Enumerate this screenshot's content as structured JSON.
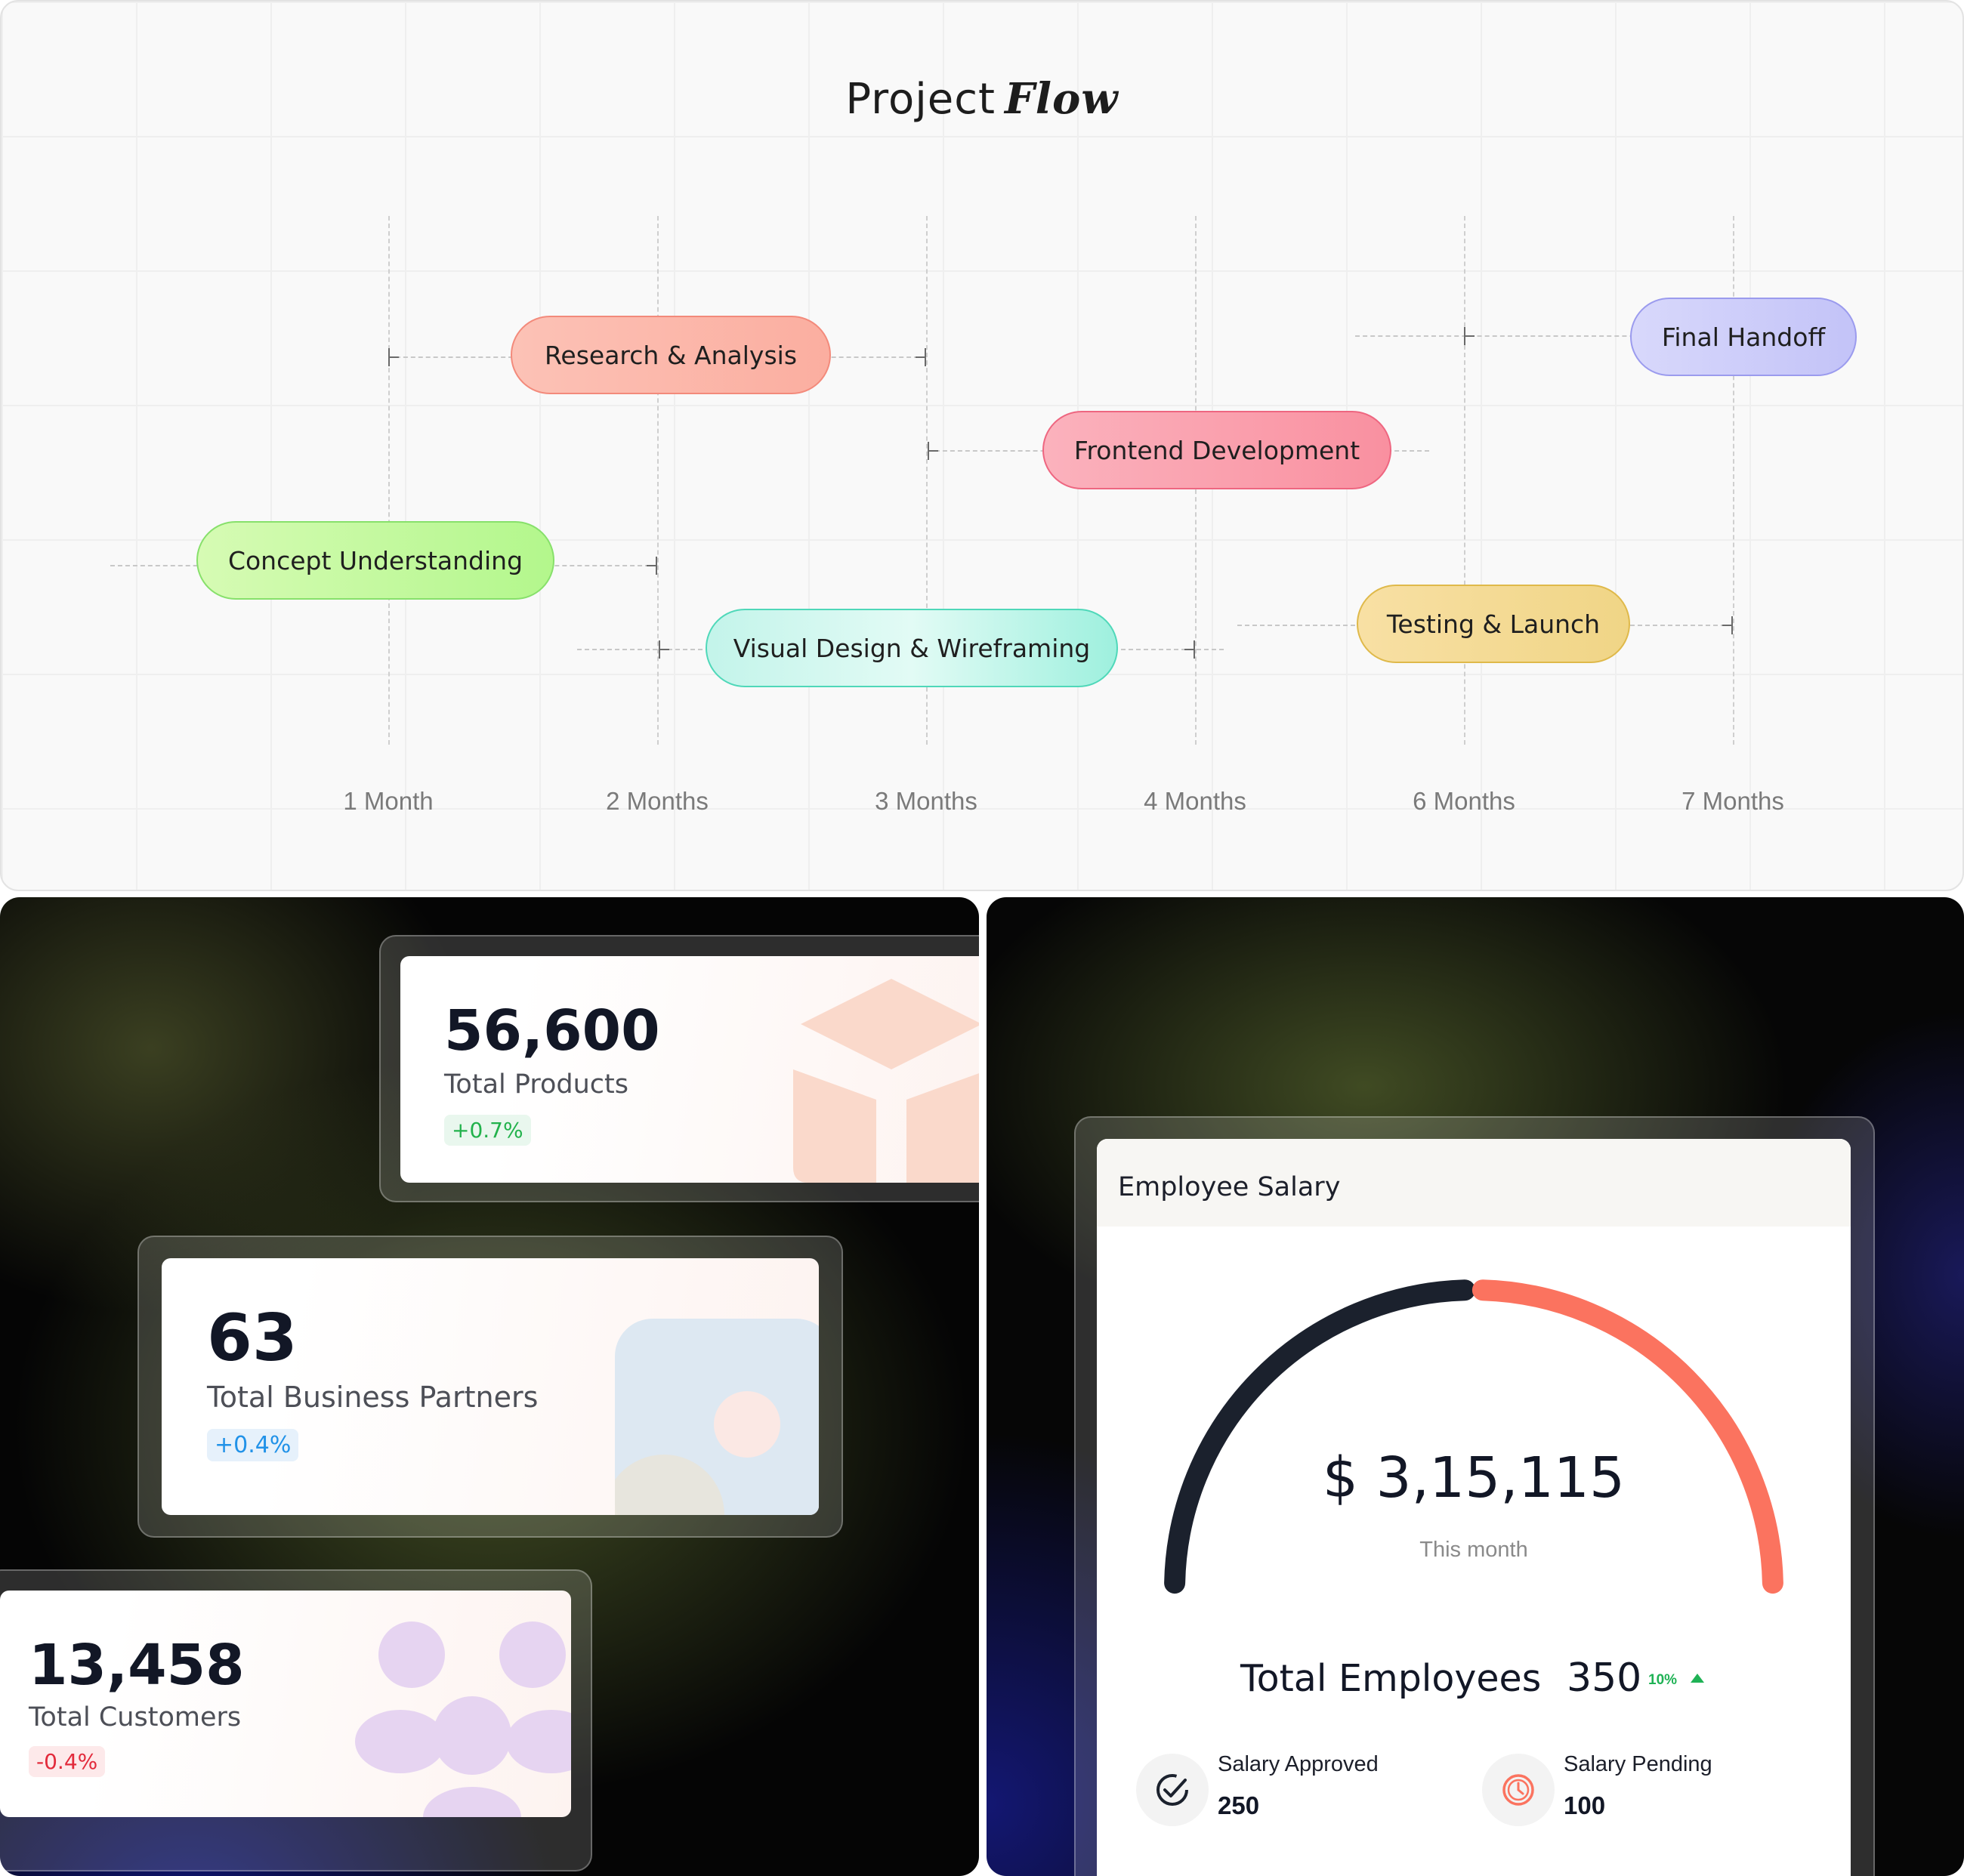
{
  "project_flow": {
    "title": "Project",
    "title_emphasis": "Flow",
    "axis_labels": [
      "1 Month",
      "2 Months",
      "3 Months",
      "4 Months",
      "6 Months",
      "7 Months"
    ],
    "tasks": [
      {
        "label": "Research & Analysis"
      },
      {
        "label": "Frontend Development"
      },
      {
        "label": "Final Handoff"
      },
      {
        "label": "Concept Understanding"
      },
      {
        "label": "Visual Design & Wireframing"
      },
      {
        "label": "Testing & Launch"
      }
    ]
  },
  "stats": {
    "products": {
      "value": "56,600",
      "label": "Total Products",
      "change": "+0.7%",
      "icon": "cube-icon"
    },
    "partners": {
      "value": "63",
      "label": "Total Business Partners",
      "change": "+0.4%",
      "icon": "partner-icon"
    },
    "customers": {
      "value": "13,458",
      "label": "Total Customers",
      "change": "-0.4%",
      "icon": "users-icon"
    }
  },
  "salary": {
    "title": "Employee Salary",
    "amount": "$ 3,15,115",
    "period": "This month",
    "gauge_fraction_paid": 0.5,
    "employees_label": "Total Employees",
    "employees_value": "350",
    "employees_change": "10%",
    "approved_label": "Salary Approved",
    "approved_value": "250",
    "pending_label": "Salary Pending",
    "pending_value": "100",
    "colors": {
      "dark": "#1b212d",
      "accent": "#fb735f",
      "up": "#1fb255"
    }
  }
}
